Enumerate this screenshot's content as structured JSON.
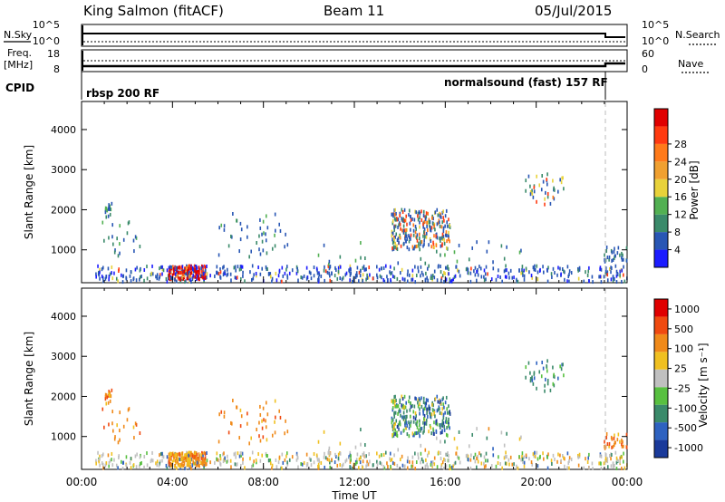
{
  "header": {
    "station": "King Salmon (fitACF)",
    "beam": "Beam 11",
    "date": "05/Jul/2015"
  },
  "summary_panels": {
    "nsky": {
      "label": "N.Sky",
      "ticks": [
        "10^5",
        "10^0"
      ]
    },
    "nsearch": {
      "label": "N.Search",
      "ticks": [
        "10^5",
        "10^0"
      ]
    },
    "freq": {
      "label_line1": "Freq.",
      "label_line2": "[MHz]",
      "ticks": [
        "18",
        "8"
      ]
    },
    "nave": {
      "label": "Nave",
      "ticks": [
        "60",
        "0"
      ]
    },
    "cpid": {
      "label": "CPID",
      "mode1": "rbsp 200 RF",
      "mode2": "normalsound (fast) 157 RF"
    }
  },
  "chart_data": [
    {
      "type": "heatmap",
      "name": "power",
      "ylabel": "Slant Range [km]",
      "yticks": [
        1000,
        2000,
        3000,
        4000
      ],
      "ylim": [
        180,
        4700
      ],
      "colorbar": {
        "label": "Power [dB]",
        "ticks": [
          "4",
          "8",
          "12",
          "16",
          "20",
          "24",
          "28"
        ],
        "colors": [
          "#1c1cff",
          "#2856b4",
          "#3a8a6a",
          "#52b052",
          "#e8d23a",
          "#f0a030",
          "#ff7a1a",
          "#ff3a10",
          "#e00000"
        ]
      }
    },
    {
      "type": "heatmap",
      "name": "velocity",
      "ylabel": "Slant Range [km]",
      "yticks": [
        1000,
        2000,
        3000,
        4000
      ],
      "ylim": [
        180,
        4700
      ],
      "xlabel": "Time UT",
      "xticks": [
        "00:00",
        "04:00",
        "08:00",
        "12:00",
        "16:00",
        "20:00",
        "00:00"
      ],
      "xlim_hours": [
        0,
        24
      ],
      "colorbar": {
        "label": "Velocity [m s⁻¹]",
        "ticks": [
          "1000",
          "500",
          "100",
          "25",
          "-25",
          "-100",
          "-500",
          "-1000"
        ],
        "colors": [
          "#1a3a9a",
          "#2e62c0",
          "#3a8a6a",
          "#58c040",
          "#c0c0c0",
          "#f0c020",
          "#f08a1a",
          "#f04a10",
          "#e00000"
        ]
      }
    }
  ]
}
